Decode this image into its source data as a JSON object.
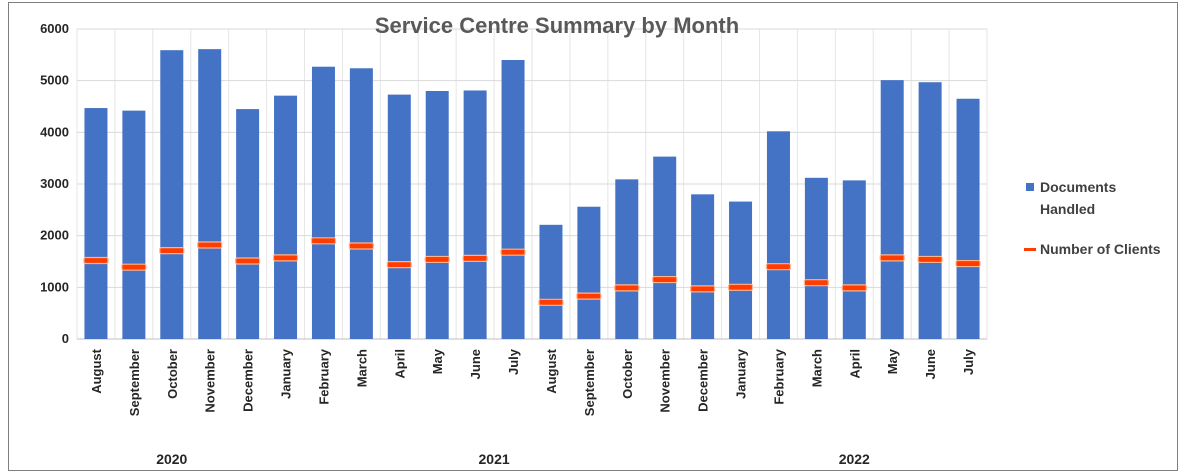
{
  "chart_data": {
    "type": "bar",
    "title": "Service Centre Summary by Month",
    "xlabel": "",
    "ylabel": "",
    "ylim": [
      0,
      6000
    ],
    "yticks": [
      0,
      1000,
      2000,
      3000,
      4000,
      5000,
      6000
    ],
    "grid": true,
    "legend_position": "right",
    "categories": [
      "August",
      "September",
      "October",
      "November",
      "December",
      "January",
      "February",
      "March",
      "April",
      "May",
      "June",
      "July",
      "August",
      "September",
      "October",
      "November",
      "December",
      "January",
      "February",
      "March",
      "April",
      "May",
      "June",
      "July"
    ],
    "year_groups": [
      {
        "label": "2020",
        "start": 0,
        "end": 4
      },
      {
        "label": "2021",
        "start": 5,
        "end": 16
      },
      {
        "label": "2022",
        "start": 17,
        "end": 23
      }
    ],
    "series": [
      {
        "name": "Documents Handled",
        "type": "bar",
        "color": "#4472c4",
        "values": [
          4470,
          4420,
          5590,
          5610,
          4450,
          4710,
          5270,
          5240,
          4730,
          4800,
          4810,
          5400,
          2210,
          2560,
          3090,
          3530,
          2800,
          2660,
          4020,
          3120,
          3070,
          5010,
          4970,
          4650
        ]
      },
      {
        "name": "Number of Clients",
        "type": "marker",
        "color": "#ff3d00",
        "values": [
          1520,
          1390,
          1710,
          1820,
          1510,
          1570,
          1900,
          1800,
          1440,
          1540,
          1560,
          1680,
          710,
          830,
          990,
          1150,
          970,
          1000,
          1400,
          1090,
          990,
          1570,
          1540,
          1460
        ]
      }
    ]
  }
}
